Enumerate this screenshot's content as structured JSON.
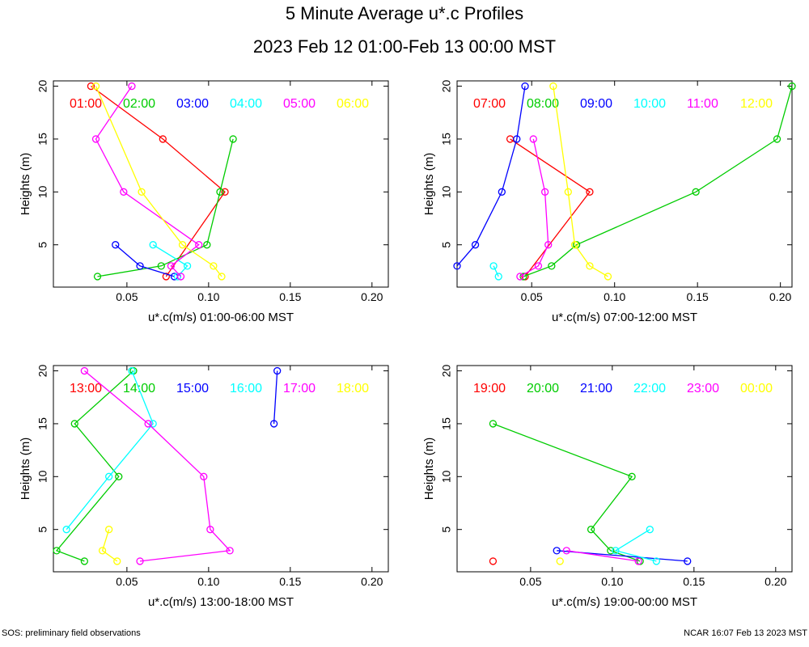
{
  "title": "5 Minute Average u*.c Profiles",
  "subtitle": "2023 Feb 12 01:00-Feb 13 00:00 MST",
  "footer_left": "SOS: preliminary field observations",
  "footer_right": "NCAR 16:07 Feb 13 2023 MST",
  "series_colors": [
    "#ff0000",
    "#00cc00",
    "#0000ff",
    "#00ffff",
    "#ff00ff",
    "#ffff00"
  ],
  "chart_data": [
    {
      "type": "line",
      "xlabel": "u*.c(m/s) 01:00-06:00 MST",
      "ylabel": "Heights (m)",
      "xlim": [
        0.005,
        0.21
      ],
      "ylim": [
        1,
        20.5
      ],
      "xticks": [
        "0.05",
        "0.10",
        "0.15",
        "0.20"
      ],
      "xtick_values": [
        0.05,
        0.1,
        0.15,
        0.2
      ],
      "yticks": [
        "5",
        "10",
        "15",
        "20"
      ],
      "ytick_values": [
        5,
        10,
        15,
        20
      ],
      "series": [
        {
          "name": "01:00",
          "points": [
            [
              0.028,
              20
            ],
            [
              0.072,
              15
            ],
            [
              0.11,
              10
            ],
            [
              0.074,
              2
            ]
          ]
        },
        {
          "name": "02:00",
          "points": [
            [
              0.115,
              15
            ],
            [
              0.107,
              10
            ],
            [
              0.099,
              5
            ],
            [
              0.071,
              3
            ],
            [
              0.032,
              2
            ]
          ]
        },
        {
          "name": "03:00",
          "points": [
            [
              0.043,
              5
            ],
            [
              0.058,
              3
            ],
            [
              0.079,
              2
            ]
          ]
        },
        {
          "name": "04:00",
          "points": [
            [
              0.066,
              5
            ],
            [
              0.087,
              3
            ],
            [
              0.081,
              2
            ]
          ]
        },
        {
          "name": "05:00",
          "points": [
            [
              0.053,
              20
            ],
            [
              0.031,
              15
            ],
            [
              0.048,
              10
            ],
            [
              0.094,
              5
            ],
            [
              0.077,
              3
            ],
            [
              0.083,
              2
            ]
          ]
        },
        {
          "name": "06:00",
          "points": [
            [
              0.031,
              20
            ],
            [
              0.059,
              10
            ],
            [
              0.084,
              5
            ],
            [
              0.103,
              3
            ],
            [
              0.108,
              2
            ]
          ]
        }
      ]
    },
    {
      "type": "line",
      "xlabel": "u*.c(m/s) 07:00-12:00 MST",
      "ylabel": "Heights (m)",
      "xlim": [
        0.005,
        0.207
      ],
      "ylim": [
        1,
        20.5
      ],
      "xticks": [
        "0.05",
        "0.10",
        "0.15",
        "0.20"
      ],
      "xtick_values": [
        0.05,
        0.1,
        0.15,
        0.2
      ],
      "yticks": [
        "5",
        "10",
        "15",
        "20"
      ],
      "ytick_values": [
        5,
        10,
        15,
        20
      ],
      "series": [
        {
          "name": "07:00",
          "points": [
            [
              0.037,
              15
            ],
            [
              0.085,
              10
            ],
            [
              0.046,
              2
            ]
          ]
        },
        {
          "name": "08:00",
          "points": [
            [
              0.207,
              20
            ],
            [
              0.198,
              15
            ],
            [
              0.149,
              10
            ],
            [
              0.077,
              5
            ],
            [
              0.062,
              3
            ],
            [
              0.045,
              2
            ]
          ]
        },
        {
          "name": "09:00",
          "points": [
            [
              0.046,
              20
            ],
            [
              0.041,
              15
            ],
            [
              0.032,
              10
            ],
            [
              0.016,
              5
            ],
            [
              0.005,
              3
            ]
          ]
        },
        {
          "name": "10:00",
          "points": [
            [
              0.027,
              3
            ],
            [
              0.03,
              2
            ]
          ]
        },
        {
          "name": "11:00",
          "points": [
            [
              0.051,
              15
            ],
            [
              0.058,
              10
            ],
            [
              0.06,
              5
            ],
            [
              0.054,
              3
            ],
            [
              0.043,
              2
            ]
          ]
        },
        {
          "name": "12:00",
          "points": [
            [
              0.063,
              20
            ],
            [
              0.072,
              10
            ],
            [
              0.076,
              5
            ],
            [
              0.085,
              3
            ],
            [
              0.096,
              2
            ]
          ]
        }
      ]
    },
    {
      "type": "line",
      "xlabel": "u*.c(m/s) 13:00-18:00 MST",
      "ylabel": "Heights (m)",
      "xlim": [
        0.005,
        0.21
      ],
      "ylim": [
        1,
        20.5
      ],
      "xticks": [
        "0.05",
        "0.10",
        "0.15",
        "0.20"
      ],
      "xtick_values": [
        0.05,
        0.1,
        0.15,
        0.2
      ],
      "yticks": [
        "5",
        "10",
        "15",
        "20"
      ],
      "ytick_values": [
        5,
        10,
        15,
        20
      ],
      "series": [
        {
          "name": "13:00",
          "points": []
        },
        {
          "name": "14:00",
          "points": [
            [
              0.054,
              20
            ],
            [
              0.018,
              15
            ],
            [
              0.045,
              10
            ],
            [
              0.007,
              3
            ],
            [
              0.024,
              2
            ]
          ]
        },
        {
          "name": "15:00",
          "points": [
            [
              0.142,
              20
            ],
            [
              0.14,
              15
            ]
          ]
        },
        {
          "name": "16:00",
          "points": [
            [
              0.053,
              20
            ],
            [
              0.066,
              15
            ],
            [
              0.039,
              10
            ],
            [
              0.013,
              5
            ]
          ]
        },
        {
          "name": "17:00",
          "points": [
            [
              0.024,
              20
            ],
            [
              0.063,
              15
            ],
            [
              0.097,
              10
            ],
            [
              0.101,
              5
            ],
            [
              0.113,
              3
            ],
            [
              0.058,
              2
            ]
          ]
        },
        {
          "name": "18:00",
          "points": [
            [
              0.039,
              5
            ],
            [
              0.035,
              3
            ],
            [
              0.044,
              2
            ]
          ]
        }
      ]
    },
    {
      "type": "line",
      "xlabel": "u*.c(m/s) 19:00-00:00 MST",
      "ylabel": "Heights (m)",
      "xlim": [
        0.005,
        0.21
      ],
      "ylim": [
        1,
        20.5
      ],
      "xticks": [
        "0.05",
        "0.10",
        "0.15",
        "0.20"
      ],
      "xtick_values": [
        0.05,
        0.1,
        0.15,
        0.2
      ],
      "yticks": [
        "5",
        "10",
        "15",
        "20"
      ],
      "ytick_values": [
        5,
        10,
        15,
        20
      ],
      "series": [
        {
          "name": "19:00",
          "points": [
            [
              0.027,
              2
            ]
          ]
        },
        {
          "name": "20:00",
          "points": [
            [
              0.027,
              15
            ],
            [
              0.112,
              10
            ],
            [
              0.087,
              5
            ],
            [
              0.099,
              3
            ],
            [
              0.117,
              2
            ]
          ]
        },
        {
          "name": "21:00",
          "points": [
            [
              0.066,
              3
            ],
            [
              0.146,
              2
            ]
          ]
        },
        {
          "name": "22:00",
          "points": [
            [
              0.123,
              5
            ],
            [
              0.102,
              3
            ],
            [
              0.127,
              2
            ]
          ]
        },
        {
          "name": "23:00",
          "points": [
            [
              0.072,
              3
            ],
            [
              0.116,
              2
            ]
          ]
        },
        {
          "name": "00:00",
          "points": [
            [
              0.068,
              2
            ]
          ]
        }
      ]
    }
  ]
}
